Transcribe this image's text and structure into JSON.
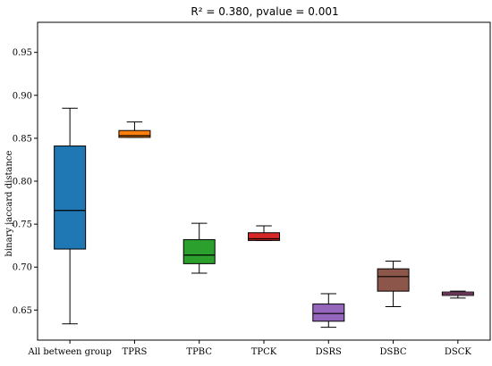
{
  "chart_data": {
    "type": "box",
    "title": "R² = 0.380, pvalue = 0.001",
    "ylabel": "binary jaccard distance",
    "xlabel": "",
    "ylim": [
      0.615,
      0.985
    ],
    "yticks": [
      0.65,
      0.7,
      0.75,
      0.8,
      0.85,
      0.9,
      0.95
    ],
    "ytick_labels": [
      "0.65",
      "0.70",
      "0.75",
      "0.80",
      "0.85",
      "0.90",
      "0.95"
    ],
    "grid": false,
    "categories": [
      "All between group",
      "TPRS",
      "TPBC",
      "TPCK",
      "DSRS",
      "DSBC",
      "DSCK"
    ],
    "boxes": [
      {
        "category": "All between group",
        "min": 0.634,
        "q1": 0.721,
        "median": 0.766,
        "q3": 0.841,
        "max": 0.885,
        "color": "#1f77b4"
      },
      {
        "category": "TPRS",
        "min": 0.851,
        "q1": 0.851,
        "median": 0.853,
        "q3": 0.859,
        "max": 0.869,
        "color": "#ff7f0e"
      },
      {
        "category": "TPBC",
        "min": 0.693,
        "q1": 0.704,
        "median": 0.714,
        "q3": 0.732,
        "max": 0.751,
        "color": "#2ca02c"
      },
      {
        "category": "TPCK",
        "min": 0.731,
        "q1": 0.731,
        "median": 0.733,
        "q3": 0.74,
        "max": 0.748,
        "color": "#d62728"
      },
      {
        "category": "DSRS",
        "min": 0.63,
        "q1": 0.637,
        "median": 0.646,
        "q3": 0.657,
        "max": 0.669,
        "color": "#9467bd"
      },
      {
        "category": "DSBC",
        "min": 0.654,
        "q1": 0.672,
        "median": 0.689,
        "q3": 0.698,
        "max": 0.707,
        "color": "#8c564b"
      },
      {
        "category": "DSCK",
        "min": 0.664,
        "q1": 0.667,
        "median": 0.669,
        "q3": 0.671,
        "max": 0.672,
        "color": "#e377c2"
      }
    ]
  }
}
